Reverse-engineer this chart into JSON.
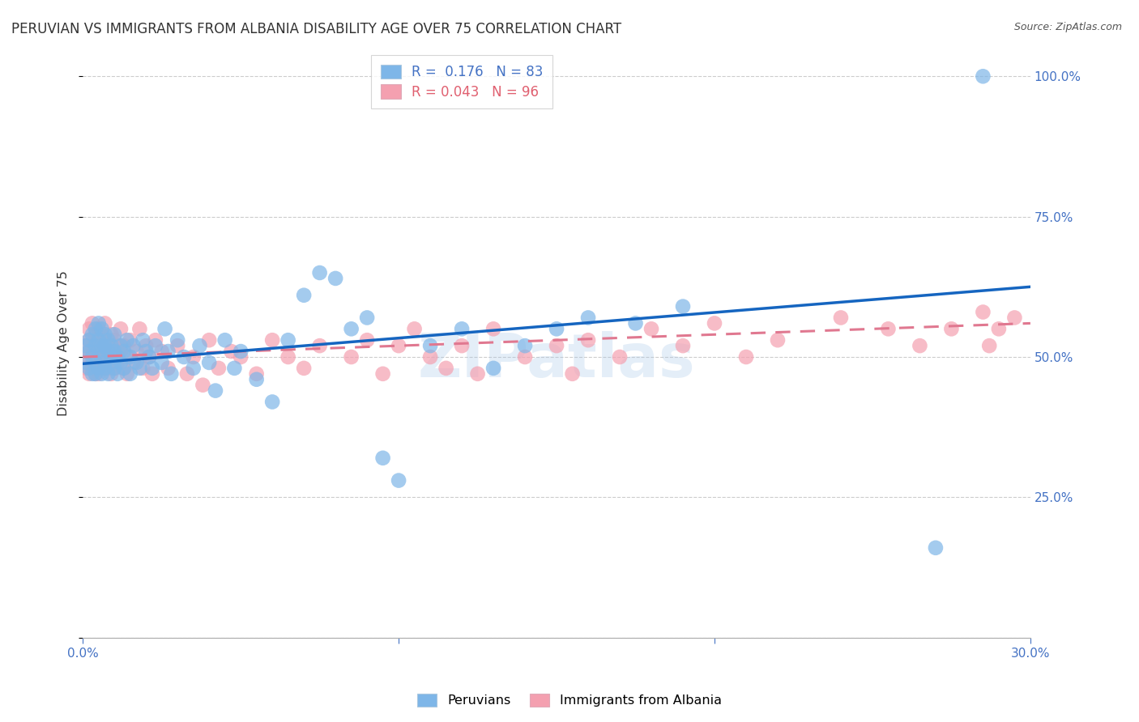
{
  "title": "PERUVIAN VS IMMIGRANTS FROM ALBANIA DISABILITY AGE OVER 75 CORRELATION CHART",
  "source": "Source: ZipAtlas.com",
  "ylabel": "Disability Age Over 75",
  "xlim": [
    0.0,
    0.3
  ],
  "ylim": [
    0.0,
    1.05
  ],
  "ytick_positions": [
    0.0,
    0.25,
    0.5,
    0.75,
    1.0
  ],
  "ytick_labels": [
    "",
    "25.0%",
    "50.0%",
    "75.0%",
    "100.0%"
  ],
  "xtick_positions": [
    0.0,
    0.1,
    0.2,
    0.3
  ],
  "xtick_labels": [
    "0.0%",
    "",
    "",
    "30.0%"
  ],
  "peruvian_color": "#7EB6E8",
  "albania_color": "#F4A0B0",
  "peruvian_line_color": "#1565C0",
  "albania_line_color": "#E07890",
  "peruvian_x": [
    0.001,
    0.001,
    0.002,
    0.002,
    0.002,
    0.003,
    0.003,
    0.003,
    0.004,
    0.004,
    0.004,
    0.004,
    0.005,
    0.005,
    0.005,
    0.005,
    0.006,
    0.006,
    0.006,
    0.006,
    0.007,
    0.007,
    0.007,
    0.007,
    0.008,
    0.008,
    0.008,
    0.009,
    0.009,
    0.009,
    0.01,
    0.01,
    0.01,
    0.011,
    0.011,
    0.012,
    0.012,
    0.013,
    0.013,
    0.014,
    0.015,
    0.015,
    0.016,
    0.017,
    0.018,
    0.019,
    0.02,
    0.021,
    0.022,
    0.023,
    0.025,
    0.026,
    0.027,
    0.028,
    0.03,
    0.032,
    0.035,
    0.037,
    0.04,
    0.042,
    0.045,
    0.048,
    0.05,
    0.055,
    0.06,
    0.065,
    0.07,
    0.075,
    0.08,
    0.085,
    0.09,
    0.095,
    0.1,
    0.11,
    0.12,
    0.13,
    0.14,
    0.15,
    0.16,
    0.175,
    0.19,
    0.27,
    0.285
  ],
  "peruvian_y": [
    0.52,
    0.49,
    0.51,
    0.48,
    0.53,
    0.5,
    0.47,
    0.54,
    0.52,
    0.49,
    0.55,
    0.47,
    0.51,
    0.48,
    0.53,
    0.56,
    0.5,
    0.47,
    0.52,
    0.55,
    0.49,
    0.52,
    0.48,
    0.54,
    0.51,
    0.47,
    0.53,
    0.5,
    0.49,
    0.52,
    0.48,
    0.51,
    0.54,
    0.5,
    0.47,
    0.52,
    0.49,
    0.51,
    0.48,
    0.53,
    0.5,
    0.47,
    0.52,
    0.49,
    0.48,
    0.53,
    0.51,
    0.5,
    0.48,
    0.52,
    0.49,
    0.55,
    0.51,
    0.47,
    0.53,
    0.5,
    0.48,
    0.52,
    0.49,
    0.44,
    0.53,
    0.48,
    0.51,
    0.46,
    0.42,
    0.53,
    0.61,
    0.65,
    0.64,
    0.55,
    0.57,
    0.32,
    0.28,
    0.52,
    0.55,
    0.48,
    0.52,
    0.55,
    0.57,
    0.56,
    0.59,
    0.16,
    1.0
  ],
  "albania_x": [
    0.001,
    0.001,
    0.001,
    0.002,
    0.002,
    0.002,
    0.002,
    0.003,
    0.003,
    0.003,
    0.003,
    0.004,
    0.004,
    0.004,
    0.004,
    0.005,
    0.005,
    0.005,
    0.005,
    0.006,
    0.006,
    0.006,
    0.006,
    0.007,
    0.007,
    0.007,
    0.007,
    0.008,
    0.008,
    0.008,
    0.009,
    0.009,
    0.009,
    0.01,
    0.01,
    0.01,
    0.011,
    0.011,
    0.012,
    0.012,
    0.013,
    0.013,
    0.014,
    0.014,
    0.015,
    0.016,
    0.017,
    0.018,
    0.019,
    0.02,
    0.021,
    0.022,
    0.023,
    0.025,
    0.027,
    0.03,
    0.033,
    0.035,
    0.038,
    0.04,
    0.043,
    0.047,
    0.05,
    0.055,
    0.06,
    0.065,
    0.07,
    0.075,
    0.085,
    0.09,
    0.095,
    0.1,
    0.105,
    0.11,
    0.115,
    0.12,
    0.125,
    0.13,
    0.14,
    0.15,
    0.155,
    0.16,
    0.17,
    0.18,
    0.19,
    0.2,
    0.21,
    0.22,
    0.24,
    0.255,
    0.265,
    0.275,
    0.285,
    0.287,
    0.29,
    0.295
  ],
  "albania_y": [
    0.52,
    0.5,
    0.48,
    0.55,
    0.51,
    0.47,
    0.53,
    0.49,
    0.52,
    0.56,
    0.48,
    0.54,
    0.51,
    0.47,
    0.5,
    0.53,
    0.49,
    0.55,
    0.47,
    0.52,
    0.5,
    0.54,
    0.48,
    0.51,
    0.53,
    0.49,
    0.56,
    0.5,
    0.48,
    0.52,
    0.51,
    0.47,
    0.54,
    0.5,
    0.53,
    0.48,
    0.52,
    0.49,
    0.51,
    0.55,
    0.48,
    0.52,
    0.5,
    0.47,
    0.53,
    0.49,
    0.51,
    0.55,
    0.48,
    0.52,
    0.5,
    0.47,
    0.53,
    0.51,
    0.48,
    0.52,
    0.47,
    0.5,
    0.45,
    0.53,
    0.48,
    0.51,
    0.5,
    0.47,
    0.53,
    0.5,
    0.48,
    0.52,
    0.5,
    0.53,
    0.47,
    0.52,
    0.55,
    0.5,
    0.48,
    0.52,
    0.47,
    0.55,
    0.5,
    0.52,
    0.47,
    0.53,
    0.5,
    0.55,
    0.52,
    0.56,
    0.5,
    0.53,
    0.57,
    0.55,
    0.52,
    0.55,
    0.58,
    0.52,
    0.55,
    0.57
  ]
}
